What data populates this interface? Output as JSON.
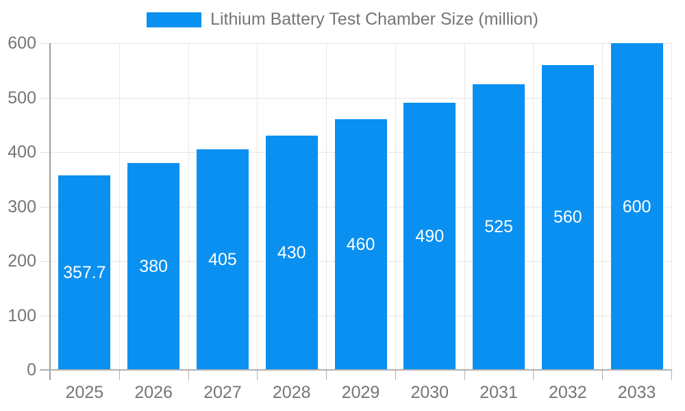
{
  "legend": {
    "label": "Lithium Battery Test Chamber Size (million)"
  },
  "colors": {
    "bar": "#0a90f0",
    "axis_text": "#757575",
    "grid": "#e6e6e6",
    "y_axis_line": "#9e9e9e",
    "x_axis_line": "#b0b0b0",
    "value_label": "#ffffff",
    "background": "#ffffff"
  },
  "chart_data": {
    "type": "bar",
    "title": "Lithium Battery Test Chamber Size (million)",
    "categories": [
      "2025",
      "2026",
      "2027",
      "2028",
      "2029",
      "2030",
      "2031",
      "2032",
      "2033"
    ],
    "values": [
      357.7,
      380,
      405,
      430,
      460,
      490,
      525,
      560,
      600
    ],
    "value_labels": [
      "357.7",
      "380",
      "405",
      "430",
      "460",
      "490",
      "525",
      "560",
      "600"
    ],
    "xlabel": "",
    "ylabel": "",
    "ylim": [
      0,
      600
    ],
    "yticks": [
      0,
      100,
      200,
      300,
      400,
      500,
      600
    ],
    "grid": true,
    "legend_position": "top",
    "bar_color": "#0a90f0",
    "value_label_position": "center-of-bar"
  }
}
